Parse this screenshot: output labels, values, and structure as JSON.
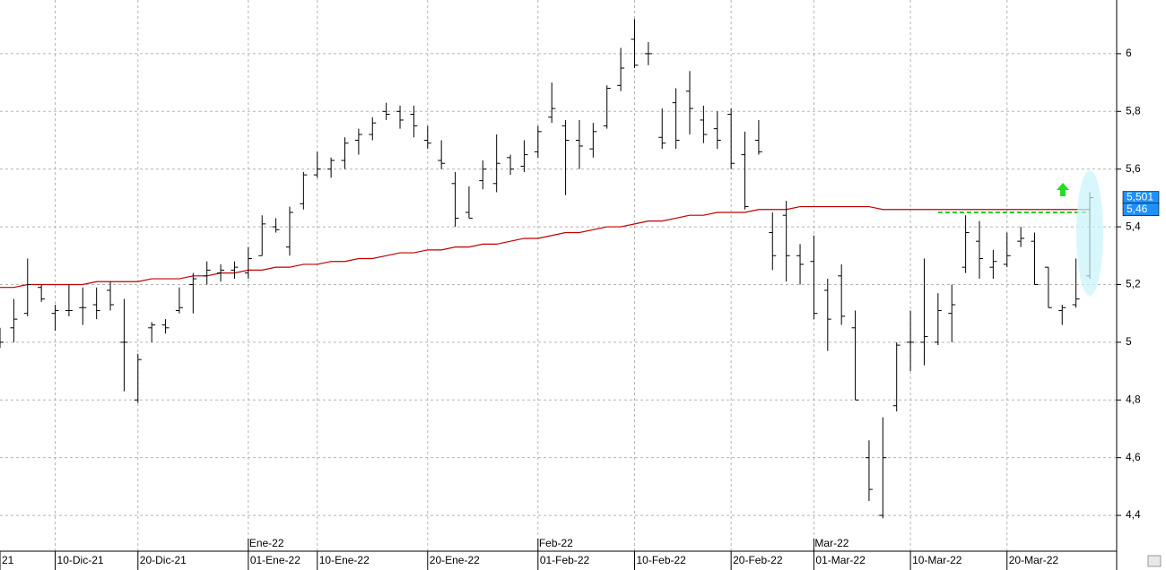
{
  "chart_data": {
    "type": "ohlc",
    "categories": [
      "21",
      null,
      null,
      null,
      "10-Dic-21",
      null,
      null,
      null,
      null,
      null,
      "20-Dic-21",
      null,
      null,
      null,
      null,
      null,
      null,
      null,
      "01-Ene-22",
      null,
      null,
      null,
      null,
      "10-Ene-22",
      null,
      null,
      null,
      null,
      null,
      null,
      null,
      "20-Ene-22",
      null,
      null,
      null,
      null,
      null,
      null,
      null,
      "01-Feb-22",
      null,
      null,
      null,
      null,
      null,
      null,
      "10-Feb-22",
      null,
      null,
      null,
      null,
      null,
      null,
      "20-Feb-22",
      null,
      null,
      null,
      null,
      null,
      "01-Mar-22",
      null,
      null,
      null,
      null,
      null,
      null,
      "10-Mar-22",
      null,
      null,
      null,
      null,
      null,
      null,
      "20-Mar-22",
      null,
      null,
      null,
      null,
      null,
      null
    ],
    "months": [
      null,
      null,
      null,
      null,
      null,
      null,
      null,
      null,
      null,
      null,
      null,
      null,
      null,
      null,
      null,
      null,
      null,
      null,
      "Ene-22",
      null,
      null,
      null,
      null,
      null,
      null,
      null,
      null,
      null,
      null,
      null,
      null,
      null,
      null,
      null,
      null,
      null,
      null,
      null,
      null,
      "Feb-22",
      null,
      null,
      null,
      null,
      null,
      null,
      null,
      null,
      null,
      null,
      null,
      null,
      null,
      null,
      null,
      null,
      null,
      null,
      null,
      "Mar-22",
      null,
      null,
      null,
      null,
      null,
      null,
      null,
      null,
      null,
      null,
      null,
      null,
      null,
      null,
      null,
      null,
      null,
      null,
      null,
      null
    ],
    "ohlc": {
      "color": "#000000",
      "open": [
        5.0,
        5.05,
        5.1,
        5.19,
        5.1,
        5.11,
        5.12,
        5.13,
        5.18,
        5.0,
        4.8,
        5.05,
        5.06,
        5.11,
        5.2,
        5.23,
        5.24,
        5.25,
        5.24,
        5.3,
        5.4,
        5.33,
        5.48,
        5.58,
        5.6,
        5.63,
        5.7,
        5.72,
        5.8,
        5.8,
        5.79,
        5.7,
        5.63,
        5.55,
        5.45,
        5.56,
        5.55,
        5.64,
        5.61,
        5.66,
        5.78,
        5.75,
        5.7,
        5.67,
        5.75,
        5.89,
        6.05,
        6.0,
        5.71,
        5.83,
        5.87,
        5.77,
        5.74,
        5.79,
        5.65,
        5.7,
        5.38,
        5.44,
        5.3,
        5.28,
        5.18,
        5.23,
        5.05,
        4.6,
        4.4,
        4.78,
        5.0,
        5.0,
        5.0,
        5.1,
        5.26,
        5.35,
        5.26,
        5.27,
        5.35,
        5.35,
        5.26,
        5.11,
        5.13,
        5.23
      ],
      "high": [
        5.05,
        5.15,
        5.29,
        5.2,
        5.13,
        5.2,
        5.19,
        5.19,
        5.21,
        5.15,
        4.96,
        5.07,
        5.08,
        5.19,
        5.24,
        5.28,
        5.27,
        5.28,
        5.33,
        5.44,
        5.43,
        5.47,
        5.59,
        5.66,
        5.64,
        5.71,
        5.74,
        5.78,
        5.83,
        5.82,
        5.82,
        5.75,
        5.7,
        5.59,
        5.54,
        5.63,
        5.72,
        5.65,
        5.7,
        5.75,
        5.9,
        5.77,
        5.77,
        5.76,
        5.89,
        6.02,
        6.12,
        6.04,
        5.81,
        5.88,
        5.94,
        5.82,
        5.8,
        5.81,
        5.73,
        5.77,
        5.45,
        5.49,
        5.34,
        5.37,
        5.22,
        5.27,
        5.11,
        4.66,
        4.74,
        5.0,
        5.11,
        5.29,
        5.17,
        5.2,
        5.44,
        5.42,
        5.32,
        5.38,
        5.4,
        5.38,
        5.26,
        5.13,
        5.29,
        5.52
      ],
      "low": [
        4.98,
        5.0,
        5.09,
        5.14,
        5.04,
        5.09,
        5.06,
        5.08,
        5.11,
        4.83,
        4.79,
        5.0,
        5.03,
        5.1,
        5.1,
        5.2,
        5.21,
        5.22,
        5.22,
        5.3,
        5.38,
        5.3,
        5.46,
        5.57,
        5.57,
        5.6,
        5.65,
        5.7,
        5.77,
        5.74,
        5.71,
        5.67,
        5.6,
        5.4,
        5.43,
        5.53,
        5.52,
        5.58,
        5.59,
        5.64,
        5.76,
        5.51,
        5.6,
        5.64,
        5.74,
        5.87,
        5.95,
        5.96,
        5.67,
        5.67,
        5.72,
        5.69,
        5.67,
        5.6,
        5.46,
        5.65,
        5.25,
        5.21,
        5.2,
        5.08,
        4.97,
        5.06,
        4.8,
        4.45,
        4.39,
        4.76,
        4.9,
        4.92,
        4.99,
        5.0,
        5.24,
        5.22,
        5.22,
        5.26,
        5.33,
        5.2,
        5.12,
        5.06,
        5.12,
        5.22
      ],
      "close": [
        5.0,
        5.08,
        5.2,
        5.15,
        5.11,
        5.11,
        5.12,
        5.11,
        5.13,
        5.0,
        4.94,
        5.06,
        5.05,
        5.12,
        5.22,
        5.25,
        5.25,
        5.26,
        5.29,
        5.41,
        5.39,
        5.45,
        5.58,
        5.6,
        5.63,
        5.69,
        5.72,
        5.76,
        5.79,
        5.77,
        5.75,
        5.69,
        5.62,
        5.43,
        5.43,
        5.6,
        5.62,
        5.6,
        5.65,
        5.73,
        5.81,
        5.7,
        5.68,
        5.73,
        5.88,
        5.95,
        5.96,
        6.0,
        5.69,
        5.7,
        5.81,
        5.72,
        5.7,
        5.62,
        5.47,
        5.66,
        5.3,
        5.3,
        5.27,
        5.1,
        5.08,
        5.09,
        4.8,
        4.49,
        4.6,
        4.99,
        5.0,
        5.02,
        5.11,
        5.13,
        5.38,
        5.29,
        5.28,
        5.3,
        5.36,
        5.2,
        5.12,
        5.12,
        5.15,
        5.501
      ]
    },
    "moving_average": {
      "color": "#c00000",
      "values": [
        5.19,
        5.19,
        5.2,
        5.2,
        5.2,
        5.2,
        5.2,
        5.21,
        5.21,
        5.21,
        5.21,
        5.22,
        5.22,
        5.22,
        5.23,
        5.23,
        5.24,
        5.24,
        5.25,
        5.25,
        5.26,
        5.26,
        5.27,
        5.27,
        5.28,
        5.28,
        5.29,
        5.29,
        5.3,
        5.31,
        5.31,
        5.32,
        5.32,
        5.33,
        5.33,
        5.34,
        5.34,
        5.35,
        5.36,
        5.36,
        5.37,
        5.38,
        5.38,
        5.39,
        5.4,
        5.4,
        5.41,
        5.42,
        5.42,
        5.43,
        5.44,
        5.44,
        5.45,
        5.45,
        5.45,
        5.46,
        5.46,
        5.46,
        5.47,
        5.47,
        5.47,
        5.47,
        5.47,
        5.47,
        5.46,
        5.46,
        5.46,
        5.46,
        5.46,
        5.46,
        5.46,
        5.46,
        5.46,
        5.46,
        5.46,
        5.46,
        5.46,
        5.46,
        5.46,
        5.46
      ]
    },
    "support_line": {
      "value": 5.45,
      "start": 68,
      "end": 79,
      "color": "#22cc22"
    },
    "price_labels": [
      {
        "value": 5.501,
        "label": "5,501"
      },
      {
        "value": 5.46,
        "label": "5,46"
      }
    ],
    "ylim": [
      4.276,
      6.186
    ],
    "yticks": [
      {
        "value": 4.4,
        "label": "4,4"
      },
      {
        "value": 4.6,
        "label": "4,6"
      },
      {
        "value": 4.8,
        "label": "4,8"
      },
      5,
      {
        "value": 5.2,
        "label": "5,2"
      },
      {
        "value": 5.4,
        "label": "5,4"
      },
      {
        "value": 5.6,
        "label": "5,6"
      },
      {
        "value": 5.8,
        "label": "5,8"
      },
      6
    ],
    "grid": true
  }
}
